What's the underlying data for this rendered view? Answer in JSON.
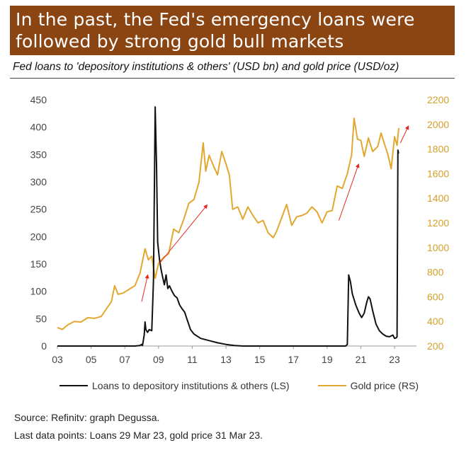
{
  "header": {
    "title": "In the past, the Fed's emergency loans were followed by strong gold bull markets",
    "subtitle": "Fed loans to 'depository institutions & others' (USD bn) and gold price (USD/oz)"
  },
  "footer": {
    "source": "Source: Refinitv: graph Degussa.",
    "last_data": "Last data points: Loans 29 Mar 23, gold price 31 Mar 23."
  },
  "colors": {
    "title_bg": "#8b4513",
    "loans": "#111111",
    "gold": "#e3a72f",
    "arrows": "#e8261c",
    "axis_right": "#d4a02a"
  },
  "chart_data": {
    "type": "line",
    "xlabel": "",
    "x_tick_labels": [
      "03",
      "05",
      "07",
      "09",
      "11",
      "13",
      "15",
      "17",
      "19",
      "21",
      "23"
    ],
    "x_range": [
      2003,
      2024.3
    ],
    "y_left": {
      "ylim": [
        0,
        450
      ],
      "ticks": [
        0,
        50,
        100,
        150,
        200,
        250,
        300,
        350,
        400,
        450
      ]
    },
    "y_right": {
      "ylim": [
        200,
        2200
      ],
      "ticks": [
        200,
        400,
        600,
        800,
        1000,
        1200,
        1400,
        1600,
        1800,
        2000,
        2200
      ]
    },
    "legend_placement": "bottom",
    "series": [
      {
        "name": "Loans to depository institutions & others (LS)",
        "axis": "left",
        "points": [
          [
            2003.0,
            0
          ],
          [
            2007.6,
            0
          ],
          [
            2007.9,
            1
          ],
          [
            2008.0,
            3
          ],
          [
            2008.05,
            1
          ],
          [
            2008.15,
            20
          ],
          [
            2008.2,
            44
          ],
          [
            2008.25,
            30
          ],
          [
            2008.35,
            25
          ],
          [
            2008.45,
            30
          ],
          [
            2008.6,
            28
          ],
          [
            2008.7,
            120
          ],
          [
            2008.8,
            437
          ],
          [
            2008.88,
            330
          ],
          [
            2008.95,
            190
          ],
          [
            2009.05,
            160
          ],
          [
            2009.15,
            140
          ],
          [
            2009.25,
            125
          ],
          [
            2009.35,
            112
          ],
          [
            2009.45,
            130
          ],
          [
            2009.55,
            105
          ],
          [
            2009.65,
            110
          ],
          [
            2009.8,
            100
          ],
          [
            2009.95,
            92
          ],
          [
            2010.1,
            88
          ],
          [
            2010.25,
            75
          ],
          [
            2010.4,
            68
          ],
          [
            2010.55,
            62
          ],
          [
            2010.7,
            48
          ],
          [
            2010.9,
            30
          ],
          [
            2011.1,
            22
          ],
          [
            2011.5,
            14
          ],
          [
            2012.0,
            10
          ],
          [
            2012.5,
            6
          ],
          [
            2013.0,
            3
          ],
          [
            2013.5,
            1
          ],
          [
            2014.0,
            0
          ],
          [
            2020.1,
            0
          ],
          [
            2020.2,
            3
          ],
          [
            2020.28,
            130
          ],
          [
            2020.38,
            118
          ],
          [
            2020.5,
            95
          ],
          [
            2020.7,
            75
          ],
          [
            2020.9,
            60
          ],
          [
            2021.05,
            52
          ],
          [
            2021.2,
            60
          ],
          [
            2021.35,
            80
          ],
          [
            2021.45,
            90
          ],
          [
            2021.55,
            86
          ],
          [
            2021.7,
            65
          ],
          [
            2021.9,
            40
          ],
          [
            2022.1,
            28
          ],
          [
            2022.3,
            22
          ],
          [
            2022.5,
            18
          ],
          [
            2022.7,
            17
          ],
          [
            2022.9,
            20
          ],
          [
            2023.0,
            14
          ],
          [
            2023.1,
            15
          ],
          [
            2023.15,
            17
          ],
          [
            2023.2,
            358
          ],
          [
            2023.24,
            352
          ]
        ]
      },
      {
        "name": "Gold price (RS)",
        "axis": "right",
        "points": [
          [
            2003.0,
            350
          ],
          [
            2003.3,
            335
          ],
          [
            2003.6,
            370
          ],
          [
            2004.0,
            400
          ],
          [
            2004.4,
            395
          ],
          [
            2004.8,
            430
          ],
          [
            2005.2,
            425
          ],
          [
            2005.6,
            440
          ],
          [
            2005.9,
            500
          ],
          [
            2006.2,
            560
          ],
          [
            2006.4,
            690
          ],
          [
            2006.6,
            620
          ],
          [
            2006.9,
            630
          ],
          [
            2007.3,
            665
          ],
          [
            2007.6,
            690
          ],
          [
            2007.9,
            790
          ],
          [
            2008.2,
            990
          ],
          [
            2008.4,
            900
          ],
          [
            2008.6,
            930
          ],
          [
            2008.8,
            750
          ],
          [
            2009.0,
            870
          ],
          [
            2009.3,
            920
          ],
          [
            2009.6,
            950
          ],
          [
            2009.9,
            1150
          ],
          [
            2010.2,
            1120
          ],
          [
            2010.5,
            1230
          ],
          [
            2010.8,
            1360
          ],
          [
            2011.1,
            1390
          ],
          [
            2011.4,
            1530
          ],
          [
            2011.65,
            1850
          ],
          [
            2011.8,
            1620
          ],
          [
            2012.0,
            1750
          ],
          [
            2012.3,
            1650
          ],
          [
            2012.5,
            1590
          ],
          [
            2012.75,
            1780
          ],
          [
            2013.0,
            1680
          ],
          [
            2013.2,
            1590
          ],
          [
            2013.4,
            1310
          ],
          [
            2013.7,
            1330
          ],
          [
            2014.0,
            1230
          ],
          [
            2014.3,
            1330
          ],
          [
            2014.6,
            1260
          ],
          [
            2014.9,
            1200
          ],
          [
            2015.2,
            1220
          ],
          [
            2015.5,
            1120
          ],
          [
            2015.8,
            1080
          ],
          [
            2016.0,
            1130
          ],
          [
            2016.3,
            1240
          ],
          [
            2016.6,
            1350
          ],
          [
            2016.9,
            1180
          ],
          [
            2017.2,
            1250
          ],
          [
            2017.5,
            1260
          ],
          [
            2017.8,
            1280
          ],
          [
            2018.1,
            1330
          ],
          [
            2018.4,
            1290
          ],
          [
            2018.7,
            1200
          ],
          [
            2019.0,
            1290
          ],
          [
            2019.3,
            1300
          ],
          [
            2019.6,
            1500
          ],
          [
            2019.9,
            1480
          ],
          [
            2020.2,
            1600
          ],
          [
            2020.45,
            1750
          ],
          [
            2020.6,
            2050
          ],
          [
            2020.8,
            1880
          ],
          [
            2021.0,
            1870
          ],
          [
            2021.2,
            1740
          ],
          [
            2021.45,
            1890
          ],
          [
            2021.7,
            1780
          ],
          [
            2022.0,
            1820
          ],
          [
            2022.2,
            1930
          ],
          [
            2022.4,
            1840
          ],
          [
            2022.6,
            1760
          ],
          [
            2022.8,
            1640
          ],
          [
            2023.0,
            1900
          ],
          [
            2023.15,
            1830
          ],
          [
            2023.25,
            1970
          ]
        ]
      }
    ]
  }
}
